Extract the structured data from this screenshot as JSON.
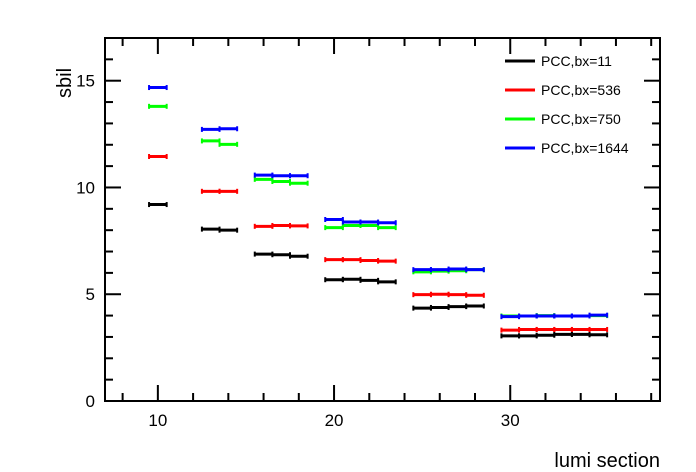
{
  "chart_data": {
    "type": "scatter",
    "title": "",
    "xlabel": "lumi section",
    "ylabel": "sbil",
    "xlim": [
      7,
      38.5
    ],
    "ylim": [
      0,
      17
    ],
    "xticks": [
      10,
      20,
      30
    ],
    "yticks": [
      0,
      5,
      10,
      15
    ],
    "x_tick_labels": [
      "10",
      "20",
      "30"
    ],
    "y_tick_labels": [
      "0",
      "5",
      "10",
      "15"
    ],
    "grid": false,
    "legend": {
      "position": "top-right"
    },
    "series": [
      {
        "name": "PCC,bx=11",
        "color": "#000000",
        "points": [
          {
            "x": 10,
            "y": 9.2
          },
          {
            "x": 13,
            "y": 8.05
          },
          {
            "x": 14,
            "y": 8.0
          },
          {
            "x": 16,
            "y": 6.88
          },
          {
            "x": 17,
            "y": 6.85
          },
          {
            "x": 18,
            "y": 6.78
          },
          {
            "x": 20,
            "y": 5.68
          },
          {
            "x": 21,
            "y": 5.7
          },
          {
            "x": 22,
            "y": 5.65
          },
          {
            "x": 23,
            "y": 5.58
          },
          {
            "x": 25,
            "y": 4.35
          },
          {
            "x": 26,
            "y": 4.38
          },
          {
            "x": 27,
            "y": 4.42
          },
          {
            "x": 28,
            "y": 4.45
          },
          {
            "x": 30,
            "y": 3.05
          },
          {
            "x": 31,
            "y": 3.05
          },
          {
            "x": 32,
            "y": 3.08
          },
          {
            "x": 33,
            "y": 3.12
          },
          {
            "x": 34,
            "y": 3.12
          },
          {
            "x": 35,
            "y": 3.1
          }
        ]
      },
      {
        "name": "PCC,bx=536",
        "color": "#ff0000",
        "points": [
          {
            "x": 10,
            "y": 11.45
          },
          {
            "x": 13,
            "y": 9.82
          },
          {
            "x": 14,
            "y": 9.82
          },
          {
            "x": 16,
            "y": 8.18
          },
          {
            "x": 17,
            "y": 8.22
          },
          {
            "x": 18,
            "y": 8.2
          },
          {
            "x": 20,
            "y": 6.62
          },
          {
            "x": 21,
            "y": 6.62
          },
          {
            "x": 22,
            "y": 6.58
          },
          {
            "x": 23,
            "y": 6.55
          },
          {
            "x": 25,
            "y": 4.98
          },
          {
            "x": 26,
            "y": 5.0
          },
          {
            "x": 27,
            "y": 4.98
          },
          {
            "x": 28,
            "y": 4.95
          },
          {
            "x": 30,
            "y": 3.32
          },
          {
            "x": 31,
            "y": 3.35
          },
          {
            "x": 32,
            "y": 3.35
          },
          {
            "x": 33,
            "y": 3.35
          },
          {
            "x": 34,
            "y": 3.35
          },
          {
            "x": 35,
            "y": 3.35
          }
        ]
      },
      {
        "name": "PCC,bx=750",
        "color": "#00ff00",
        "points": [
          {
            "x": 10,
            "y": 13.8
          },
          {
            "x": 13,
            "y": 12.18
          },
          {
            "x": 14,
            "y": 12.02
          },
          {
            "x": 16,
            "y": 10.38
          },
          {
            "x": 17,
            "y": 10.28
          },
          {
            "x": 18,
            "y": 10.2
          },
          {
            "x": 20,
            "y": 8.12
          },
          {
            "x": 21,
            "y": 8.22
          },
          {
            "x": 22,
            "y": 8.22
          },
          {
            "x": 23,
            "y": 8.12
          },
          {
            "x": 25,
            "y": 6.05
          },
          {
            "x": 26,
            "y": 6.08
          },
          {
            "x": 27,
            "y": 6.1
          },
          {
            "x": 28,
            "y": 6.15
          },
          {
            "x": 30,
            "y": 3.98
          },
          {
            "x": 31,
            "y": 3.98
          },
          {
            "x": 32,
            "y": 4.0
          },
          {
            "x": 33,
            "y": 3.98
          },
          {
            "x": 34,
            "y": 3.98
          },
          {
            "x": 35,
            "y": 4.0
          }
        ]
      },
      {
        "name": "PCC,bx=1644",
        "color": "#0000ff",
        "points": [
          {
            "x": 10,
            "y": 14.68
          },
          {
            "x": 13,
            "y": 12.72
          },
          {
            "x": 14,
            "y": 12.75
          },
          {
            "x": 16,
            "y": 10.58
          },
          {
            "x": 17,
            "y": 10.55
          },
          {
            "x": 18,
            "y": 10.55
          },
          {
            "x": 20,
            "y": 8.5
          },
          {
            "x": 21,
            "y": 8.38
          },
          {
            "x": 22,
            "y": 8.38
          },
          {
            "x": 23,
            "y": 8.35
          },
          {
            "x": 25,
            "y": 6.15
          },
          {
            "x": 26,
            "y": 6.15
          },
          {
            "x": 27,
            "y": 6.18
          },
          {
            "x": 28,
            "y": 6.15
          },
          {
            "x": 30,
            "y": 3.95
          },
          {
            "x": 31,
            "y": 3.98
          },
          {
            "x": 32,
            "y": 3.98
          },
          {
            "x": 33,
            "y": 3.98
          },
          {
            "x": 34,
            "y": 3.98
          },
          {
            "x": 35,
            "y": 4.02
          }
        ]
      }
    ]
  }
}
